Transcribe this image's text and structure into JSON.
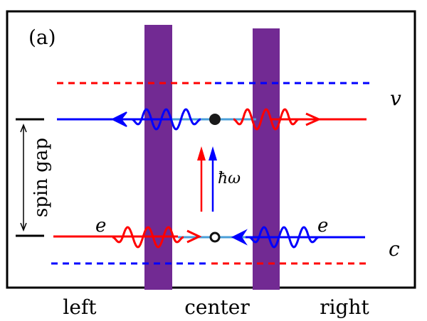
{
  "panel_label": "(a)",
  "band_labels": {
    "valence": "v",
    "conduction": "c"
  },
  "electron_labels": {
    "left": "e",
    "right": "e"
  },
  "photon_label": "ħω",
  "gap_label": "spin gap",
  "position_labels": {
    "left": "left",
    "center": "center",
    "right": "right"
  },
  "colors": {
    "spin_up": "#ff0000",
    "spin_down": "#0000ff",
    "barrier": "#722a93",
    "center_segment": "#4a9fd8",
    "frame": "#000000"
  }
}
